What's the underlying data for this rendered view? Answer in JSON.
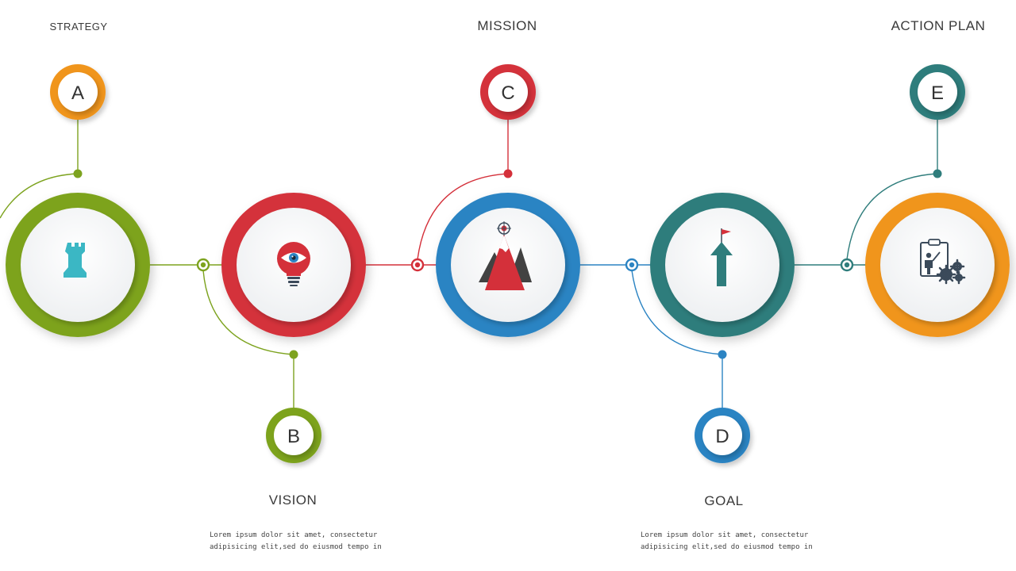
{
  "steps": [
    {
      "letter": "A",
      "title": "STRATEGY",
      "icon": "chess-rook-icon",
      "color": "#7da31f",
      "badge_color": "#f0951e"
    },
    {
      "letter": "B",
      "title": "VISION",
      "icon": "lightbulb-eye-icon",
      "color": "#d4303a",
      "badge_color": "#7da31f",
      "description": [
        "Lorem ipsum dolor sit amet, consectetur",
        "adipisicing elit,sed do eiusmod tempo in"
      ]
    },
    {
      "letter": "C",
      "title": "MISSION",
      "icon": "mountain-target-icon",
      "color": "#2c84c3",
      "badge_color": "#d4303a"
    },
    {
      "letter": "D",
      "title": "GOAL",
      "icon": "arrow-flag-icon",
      "color": "#2f7d7c",
      "badge_color": "#2c84c3",
      "description": [
        "Lorem ipsum dolor sit amet, consectetur",
        "adipisicing elit,sed do eiusmod tempo in"
      ]
    },
    {
      "letter": "E",
      "title": "ACTION PLAN",
      "icon": "presenter-gears-icon",
      "color": "#f0951e",
      "badge_color": "#2f7d7c"
    }
  ],
  "colors": {
    "icon_teal": "#3bb7c4",
    "icon_red": "#d4303a",
    "icon_dark": "#3b4a5a",
    "icon_grey": "#424242",
    "icon_blue": "#2c84c3"
  }
}
